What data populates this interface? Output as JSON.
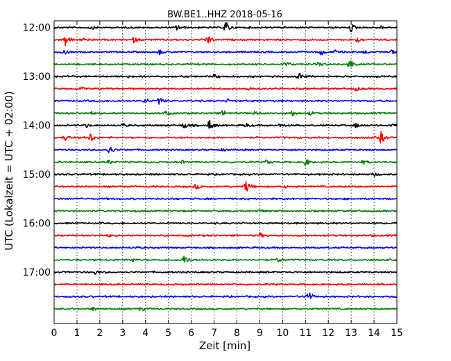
{
  "chart_data": {
    "type": "line",
    "title": "BW.BE1..HHZ 2018-05-16",
    "xlabel": "Zeit  [min]",
    "ylabel": "UTC (Lokalzeit = UTC + 02:00)",
    "xlim": [
      0,
      15
    ],
    "x_ticks": [
      "0",
      "1",
      "2",
      "3",
      "4",
      "5",
      "6",
      "7",
      "8",
      "9",
      "10",
      "11",
      "12",
      "13",
      "14",
      "15"
    ],
    "y_tick_labels": [
      "12:00",
      "13:00",
      "14:00",
      "15:00",
      "16:00",
      "17:00"
    ],
    "grid": "vertical dotted",
    "colors": [
      "#000000",
      "#ff0000",
      "#0000ff",
      "#008000"
    ],
    "series": [
      {
        "start": "12:00",
        "color_index": 0,
        "events": [
          [
            1.6,
            0.25
          ],
          [
            5.4,
            0.45
          ],
          [
            7.5,
            1.0
          ],
          [
            13.0,
            0.6
          ],
          [
            14.3,
            0.2
          ]
        ]
      },
      {
        "start": "12:15",
        "color_index": 1,
        "events": [
          [
            0.5,
            0.9
          ],
          [
            1.3,
            0.3
          ],
          [
            3.5,
            0.35
          ],
          [
            6.7,
            0.9
          ],
          [
            13.3,
            0.4
          ]
        ]
      },
      {
        "start": "12:30",
        "color_index": 2,
        "events": [
          [
            0.4,
            0.4
          ],
          [
            4.6,
            0.4
          ],
          [
            11.7,
            0.5
          ],
          [
            12.3,
            0.25
          ],
          [
            13.6,
            0.3
          ],
          [
            14.8,
            0.4
          ]
        ]
      },
      {
        "start": "12:45",
        "color_index": 3,
        "events": [
          [
            10.1,
            0.45
          ],
          [
            11.6,
            0.3
          ],
          [
            12.9,
            0.95
          ]
        ]
      },
      {
        "start": "13:00",
        "color_index": 0,
        "events": [
          [
            3.2,
            0.2
          ],
          [
            7.0,
            0.25
          ],
          [
            10.7,
            0.6
          ]
        ]
      },
      {
        "start": "13:15",
        "color_index": 1,
        "events": [
          [
            1.2,
            0.25
          ],
          [
            8.5,
            0.3
          ],
          [
            13.2,
            0.3
          ]
        ]
      },
      {
        "start": "13:30",
        "color_index": 2,
        "events": [
          [
            4.0,
            0.35
          ],
          [
            4.6,
            0.55
          ],
          [
            7.6,
            0.2
          ]
        ]
      },
      {
        "start": "13:45",
        "color_index": 3,
        "events": [
          [
            1.6,
            0.25
          ],
          [
            4.9,
            0.3
          ],
          [
            7.4,
            0.45
          ],
          [
            8.8,
            0.35
          ],
          [
            10.4,
            0.5
          ],
          [
            11.2,
            0.25
          ]
        ]
      },
      {
        "start": "14:00",
        "color_index": 0,
        "events": [
          [
            1.4,
            0.3
          ],
          [
            3.0,
            0.25
          ],
          [
            5.7,
            0.5
          ],
          [
            6.8,
            0.8
          ],
          [
            8.4,
            0.3
          ],
          [
            9.9,
            0.3
          ],
          [
            13.2,
            0.35
          ],
          [
            14.8,
            0.3
          ]
        ]
      },
      {
        "start": "14:15",
        "color_index": 1,
        "events": [
          [
            0.5,
            0.4
          ],
          [
            1.6,
            0.7
          ],
          [
            14.3,
            0.9
          ]
        ]
      },
      {
        "start": "14:30",
        "color_index": 2,
        "events": [
          [
            2.4,
            0.7
          ],
          [
            7.4,
            0.2
          ]
        ]
      },
      {
        "start": "14:45",
        "color_index": 3,
        "events": [
          [
            2.4,
            0.25
          ],
          [
            5.6,
            0.2
          ],
          [
            9.3,
            0.3
          ],
          [
            11.0,
            0.6
          ],
          [
            13.5,
            0.25
          ]
        ]
      },
      {
        "start": "15:00",
        "color_index": 0,
        "events": [
          [
            14.0,
            0.25
          ]
        ]
      },
      {
        "start": "15:15",
        "color_index": 1,
        "events": [
          [
            6.2,
            0.35
          ],
          [
            8.4,
            0.95
          ],
          [
            10.0,
            0.2
          ]
        ]
      },
      {
        "start": "15:30",
        "color_index": 2,
        "events": []
      },
      {
        "start": "15:45",
        "color_index": 3,
        "events": [
          [
            9.0,
            0.2
          ]
        ]
      },
      {
        "start": "16:00",
        "color_index": 0,
        "events": []
      },
      {
        "start": "16:15",
        "color_index": 1,
        "events": [
          [
            2.4,
            0.2
          ],
          [
            9.0,
            0.35
          ]
        ]
      },
      {
        "start": "16:30",
        "color_index": 2,
        "events": [
          [
            3.5,
            0.15
          ]
        ]
      },
      {
        "start": "16:45",
        "color_index": 3,
        "events": [
          [
            3.4,
            0.3
          ],
          [
            5.7,
            0.7
          ],
          [
            9.8,
            0.3
          ]
        ]
      },
      {
        "start": "17:00",
        "color_index": 0,
        "events": [
          [
            1.8,
            0.3
          ]
        ]
      },
      {
        "start": "17:15",
        "color_index": 1,
        "events": []
      },
      {
        "start": "17:30",
        "color_index": 2,
        "events": [
          [
            11.1,
            0.95
          ]
        ]
      },
      {
        "start": "17:45",
        "color_index": 3,
        "events": [
          [
            1.7,
            0.25
          ],
          [
            3.8,
            0.25
          ]
        ]
      }
    ]
  }
}
